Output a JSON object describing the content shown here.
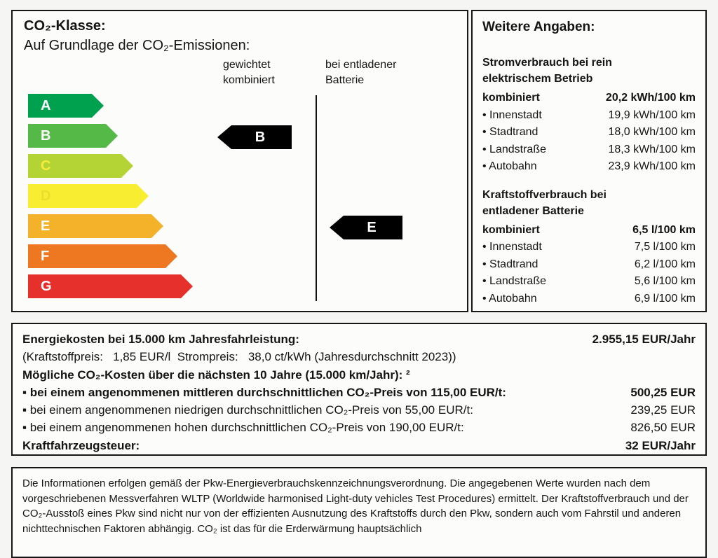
{
  "scale": {
    "title": "CO₂-Klasse:",
    "subtitle": "Auf Grundlage der CO₂-Emissionen:",
    "col_weighted_line1": "gewichtet",
    "col_weighted_line2": "kombiniert",
    "col_battery_line1": "bei entladener",
    "col_battery_line2": "Batterie",
    "classes": [
      {
        "letter": "A",
        "color": "#00a14e",
        "letter_color": "#ffffff"
      },
      {
        "letter": "B",
        "color": "#55b947",
        "letter_color": "#ffffff"
      },
      {
        "letter": "C",
        "color": "#b4d334",
        "letter_color": "#f7ec3a"
      },
      {
        "letter": "D",
        "color": "#f8ed30",
        "letter_color": "#eadf2e"
      },
      {
        "letter": "E",
        "color": "#f3b229",
        "letter_color": "#ffffff"
      },
      {
        "letter": "F",
        "color": "#ee7722",
        "letter_color": "#ffffff"
      },
      {
        "letter": "G",
        "color": "#e6302c",
        "letter_color": "#ffffff"
      }
    ],
    "weighted_rating": "B",
    "battery_rating": "E",
    "pointer_color": "#000000"
  },
  "details": {
    "title": "Weitere Angaben:",
    "electric": {
      "heading_line1": "Stromverbrauch bei rein",
      "heading_line2": "elektrischem Betrieb",
      "combined_label": "kombiniert",
      "combined_value": "20,2 kWh/100 km",
      "rows": [
        {
          "label": "• Innenstadt",
          "value": "19,9 kWh/100 km"
        },
        {
          "label": "• Stadtrand",
          "value": "18,0 kWh/100 km"
        },
        {
          "label": "• Landstraße",
          "value": "18,3 kWh/100 km"
        },
        {
          "label": "• Autobahn",
          "value": "23,9 kWh/100 km"
        }
      ]
    },
    "fuel": {
      "heading_line1": "Kraftstoffverbrauch bei",
      "heading_line2": "entladener Batterie",
      "combined_label": "kombiniert",
      "combined_value": "6,5 l/100 km",
      "rows": [
        {
          "label": "• Innenstadt",
          "value": "7,5 l/100 km"
        },
        {
          "label": "• Stadtrand",
          "value": "6,2 l/100 km"
        },
        {
          "label": "• Landstraße",
          "value": "5,6 l/100 km"
        },
        {
          "label": "• Autobahn",
          "value": "6,9 l/100 km"
        }
      ]
    }
  },
  "costs": {
    "energy_label": "Energiekosten bei 15.000 km Jahresfahrleistung:",
    "energy_value": "2.955,15 EUR/Jahr",
    "price_note": "(Kraftstoffpreis:   1,85 EUR/l  Strompreis:   38,0 ct/kWh (Jahresdurchschnitt 2023))",
    "co2_heading": "Mögliche CO₂-Kosten über die nächsten 10 Jahre (15.000 km/Jahr): ²",
    "items": [
      {
        "label": "▪ bei einem angenommenen mittleren durchschnittlichen CO₂-Preis von 115,00 EUR/t:",
        "value": "500,25 EUR"
      },
      {
        "label": "▪ bei einem angenommenen niedrigen durchschnittlichen CO₂-Preis von 55,00 EUR/t:",
        "value": "239,25 EUR"
      },
      {
        "label": "▪ bei einem angenommenen hohen durchschnittlichen CO₂-Preis von 190,00 EUR/t:",
        "value": "826,50 EUR"
      }
    ],
    "tax_label": "Kraftfahrzeugsteuer:",
    "tax_value": "32 EUR/Jahr"
  },
  "footnote": "Die Informationen erfolgen gemäß der Pkw-Energieverbrauchskennzeichnungsverordnung. Die angegebenen Werte wurden nach dem vorgeschriebenen Messverfahren WLTP (Worldwide harmonised Light-duty vehicles Test Procedures) ermittelt. Der Kraftstoffverbrauch und der CO₂-Ausstoß eines Pkw sind nicht nur von der effizienten Ausnutzung des Kraftstoffs durch den Pkw, sondern auch vom Fahrstil und anderen nichttechnischen Faktoren abhängig. CO₂ ist das für die Erderwärmung hauptsächlich"
}
